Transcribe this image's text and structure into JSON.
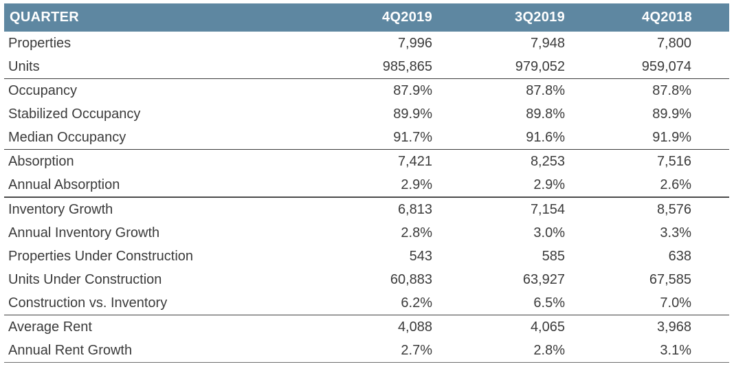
{
  "chart_data": {
    "type": "table",
    "columns": [
      "QUARTER",
      "4Q2019",
      "3Q2019",
      "4Q2018"
    ],
    "rows": [
      {
        "label": "Properties",
        "values": [
          "7,996",
          "7,948",
          "7,800"
        ]
      },
      {
        "label": "Units",
        "values": [
          "985,865",
          "979,052",
          "959,074"
        ]
      },
      {
        "label": "Occupancy",
        "values": [
          "87.9%",
          "87.8%",
          "87.8%"
        ]
      },
      {
        "label": "Stabilized Occupancy",
        "values": [
          "89.9%",
          "89.8%",
          "89.9%"
        ]
      },
      {
        "label": "Median Occupancy",
        "values": [
          "91.7%",
          "91.6%",
          "91.9%"
        ]
      },
      {
        "label": "Absorption",
        "values": [
          "7,421",
          "8,253",
          "7,516"
        ]
      },
      {
        "label": "Annual Absorption",
        "values": [
          "2.9%",
          "2.9%",
          "2.6%"
        ]
      },
      {
        "label": "Inventory Growth",
        "values": [
          "6,813",
          "7,154",
          "8,576"
        ]
      },
      {
        "label": "Annual Inventory Growth",
        "values": [
          "2.8%",
          "3.0%",
          "3.3%"
        ]
      },
      {
        "label": "Properties Under Construction",
        "values": [
          "543",
          "585",
          "638"
        ]
      },
      {
        "label": "Units Under Construction",
        "values": [
          "60,883",
          "63,927",
          "67,585"
        ]
      },
      {
        "label": "Construction vs. Inventory",
        "values": [
          "6.2%",
          "6.5%",
          "7.0%"
        ]
      },
      {
        "label": "Average Rent",
        "values": [
          "4,088",
          "4,065",
          "3,968"
        ]
      },
      {
        "label": "Annual Rent Growth",
        "values": [
          "2.7%",
          "2.8%",
          "3.1%"
        ]
      }
    ]
  },
  "colors": {
    "header_bg": "#5e87a1",
    "header_text": "#ffffff",
    "body_text": "#3a3a3a",
    "rule": "#3a3a3a"
  }
}
